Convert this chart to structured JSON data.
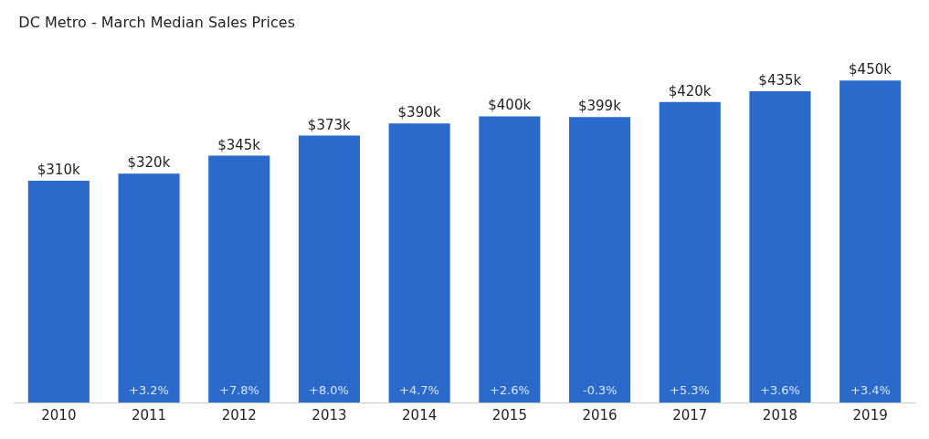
{
  "chart_data": {
    "type": "bar",
    "title": "DC Metro - March Median Sales Prices",
    "categories": [
      "2010",
      "2011",
      "2012",
      "2013",
      "2014",
      "2015",
      "2016",
      "2017",
      "2018",
      "2019"
    ],
    "values": [
      310,
      320,
      345,
      373,
      390,
      400,
      399,
      420,
      435,
      450
    ],
    "value_labels": [
      "$310k",
      "$320k",
      "$345k",
      "$373k",
      "$390k",
      "$400k",
      "$399k",
      "$420k",
      "$435k",
      "$450k"
    ],
    "color": "#2a6acb",
    "annotations": [
      "+3.2%",
      "+7.8%",
      "+8.0%",
      "+4.7%",
      "+2.6%",
      "-0.3%",
      "+5.3%",
      "+3.6%",
      "+3.4%"
    ],
    "legend": false
  }
}
